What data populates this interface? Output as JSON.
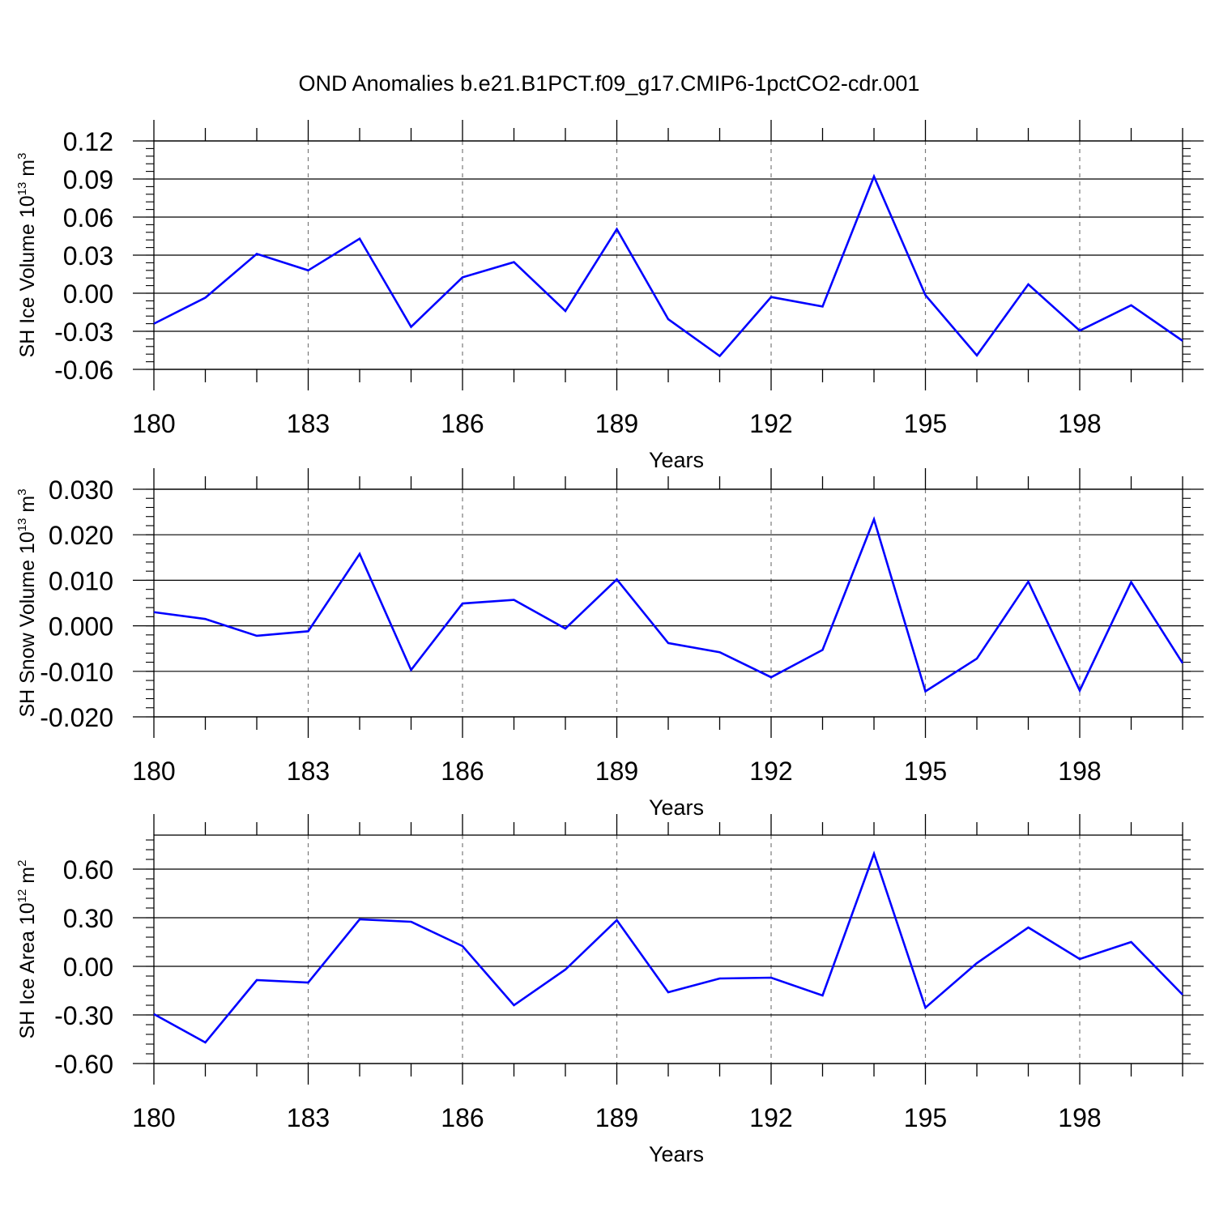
{
  "title": "OND Anomalies b.e21.B1PCT.f09_g17.CMIP6-1pctCO2-cdr.001",
  "colors": {
    "line": "#0000ff",
    "axis": "#000000",
    "grid": "#7a7a7a",
    "background": "#ffffff"
  },
  "chart_data": [
    {
      "type": "line",
      "title": "OND Anomalies b.e21.B1PCT.f09_g17.CMIP6-1pctCO2-cdr.001",
      "ylabel_main": "SH Ice Volume 10",
      "ylabel_exp": "13",
      "ylabel_unit": " m",
      "ylabel_unit_exp": "3",
      "xlabel": "Years",
      "xlim": [
        180,
        200
      ],
      "ylim": [
        -0.06,
        0.12
      ],
      "xticks": [
        180,
        183,
        186,
        189,
        192,
        195,
        198
      ],
      "xtick_labels": [
        "180",
        "183",
        "186",
        "189",
        "192",
        "195",
        "198"
      ],
      "yticks": [
        -0.06,
        -0.03,
        0.0,
        0.03,
        0.06,
        0.09,
        0.12
      ],
      "ytick_labels": [
        "-0.06",
        "-0.03",
        "0.00",
        "0.03",
        "0.06",
        "0.09",
        "0.12"
      ],
      "vgrid": [
        183,
        186,
        189,
        192,
        195,
        198
      ],
      "x": [
        180,
        181,
        182,
        183,
        184,
        185,
        186,
        187,
        188,
        189,
        190,
        191,
        192,
        193,
        194,
        195,
        196,
        197,
        198,
        199,
        200
      ],
      "values": [
        -0.024,
        -0.0035,
        0.031,
        0.018,
        0.043,
        -0.0265,
        0.0125,
        0.0245,
        -0.014,
        0.0505,
        -0.0205,
        -0.0495,
        -0.003,
        -0.0105,
        0.092,
        -0.0015,
        -0.049,
        0.007,
        -0.0295,
        -0.0095,
        -0.0375
      ]
    },
    {
      "type": "line",
      "ylabel_main": "SH Snow Volume 10",
      "ylabel_exp": "13",
      "ylabel_unit": " m",
      "ylabel_unit_exp": "3",
      "xlabel": "Years",
      "xlim": [
        180,
        200
      ],
      "ylim": [
        -0.02,
        0.03
      ],
      "xticks": [
        180,
        183,
        186,
        189,
        192,
        195,
        198
      ],
      "xtick_labels": [
        "180",
        "183",
        "186",
        "189",
        "192",
        "195",
        "198"
      ],
      "yticks": [
        -0.02,
        -0.01,
        0.0,
        0.01,
        0.02,
        0.03
      ],
      "ytick_labels": [
        "-0.020",
        "-0.010",
        "0.000",
        "0.010",
        "0.020",
        "0.030"
      ],
      "vgrid": [
        183,
        186,
        189,
        192,
        195,
        198
      ],
      "x": [
        180,
        181,
        182,
        183,
        184,
        185,
        186,
        187,
        188,
        189,
        190,
        191,
        192,
        193,
        194,
        195,
        196,
        197,
        198,
        199,
        200
      ],
      "values": [
        0.003,
        0.0015,
        -0.0022,
        -0.0012,
        0.0158,
        -0.0097,
        0.0049,
        0.0057,
        -0.0006,
        0.0102,
        -0.0038,
        -0.0058,
        -0.0113,
        -0.0053,
        0.0234,
        -0.0144,
        -0.0072,
        0.0097,
        -0.0142,
        0.0096,
        -0.0082
      ]
    },
    {
      "type": "line",
      "ylabel_main": "SH Ice Area 10",
      "ylabel_exp": "12",
      "ylabel_unit": " m",
      "ylabel_unit_exp": "2",
      "xlabel": "Years",
      "xlim": [
        180,
        200
      ],
      "ylim": [
        -0.6,
        0.81
      ],
      "xticks": [
        180,
        183,
        186,
        189,
        192,
        195,
        198
      ],
      "xtick_labels": [
        "180",
        "183",
        "186",
        "189",
        "192",
        "195",
        "198"
      ],
      "yticks": [
        -0.6,
        -0.3,
        0.0,
        0.3,
        0.6
      ],
      "ytick_labels": [
        "-0.60",
        "-0.30",
        "0.00",
        "0.30",
        "0.60"
      ],
      "vgrid": [
        183,
        186,
        189,
        192,
        195,
        198
      ],
      "x": [
        180,
        181,
        182,
        183,
        184,
        185,
        186,
        187,
        188,
        189,
        190,
        191,
        192,
        193,
        194,
        195,
        196,
        197,
        198,
        199,
        200
      ],
      "values": [
        -0.295,
        -0.47,
        -0.085,
        -0.1,
        0.29,
        0.275,
        0.125,
        -0.24,
        -0.02,
        0.285,
        -0.16,
        -0.075,
        -0.07,
        -0.18,
        0.695,
        -0.255,
        0.02,
        0.24,
        0.045,
        0.15,
        -0.175
      ]
    }
  ]
}
